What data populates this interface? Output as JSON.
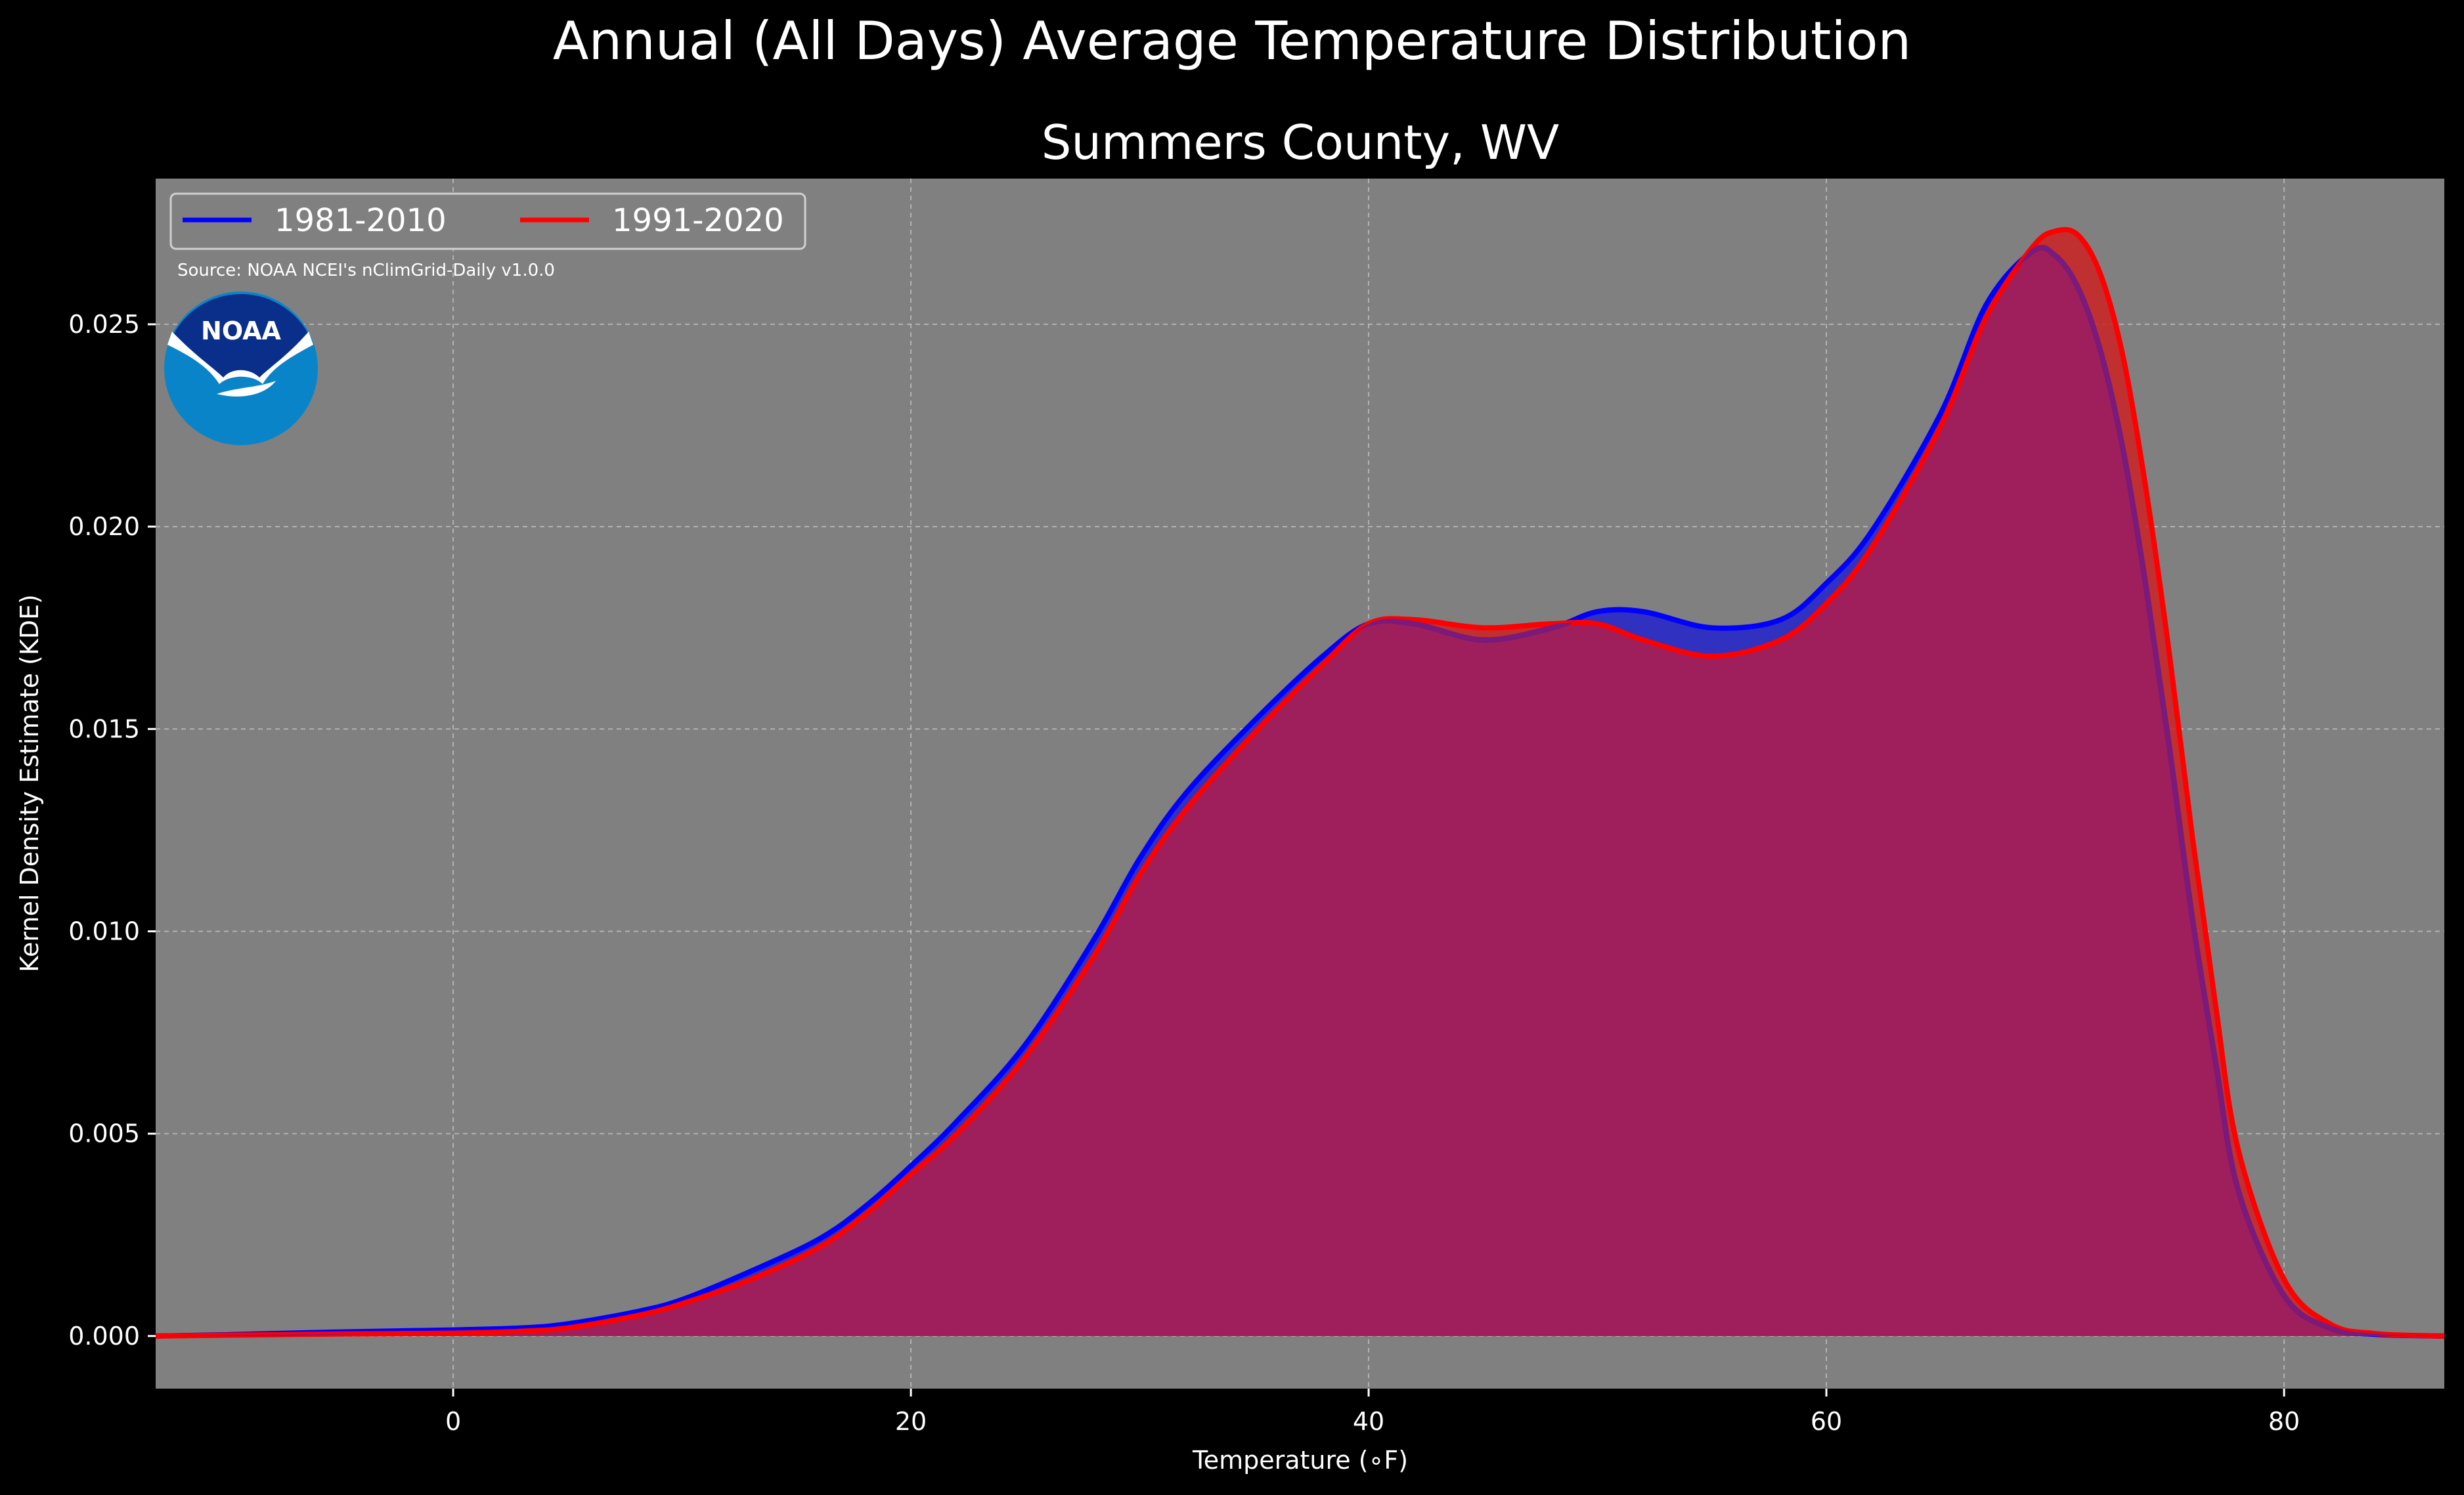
{
  "chart_data": {
    "type": "area",
    "suptitle": "Annual (All Days) Average Temperature Distribution",
    "title": "Summers County, WV",
    "xlabel": "Temperature (∘F)",
    "ylabel": "Kernel Density Estimate (KDE)",
    "xlim": [
      -13,
      87
    ],
    "ylim": [
      -0.0013,
      0.0286
    ],
    "xticks": [
      0,
      20,
      40,
      60,
      80
    ],
    "yticks": [
      0.0,
      0.005,
      0.01,
      0.015,
      0.02,
      0.025
    ],
    "ytick_labels": [
      "0.000",
      "0.005",
      "0.010",
      "0.015",
      "0.020",
      "0.025"
    ],
    "grid": true,
    "legend_position": "top-left",
    "source_note": "Source: NOAA NCEI's nClimGrid-Daily v1.0.0",
    "logo_text": "NOAA",
    "colors": {
      "background": "#000000",
      "plot_background": "#808080",
      "overlap_fill": "#9e1f5c"
    },
    "x": [
      -13,
      -10,
      -5,
      0,
      3,
      5,
      8,
      10,
      13,
      16,
      18,
      20,
      22,
      25,
      28,
      30,
      32,
      35,
      38,
      40,
      42,
      45,
      48,
      50,
      52,
      55,
      58,
      60,
      62,
      65,
      67,
      69,
      70,
      71,
      72,
      73,
      74,
      75,
      76,
      77,
      78,
      80,
      82,
      84,
      87
    ],
    "series": [
      {
        "name": "1981-2010",
        "color": "#0000ff",
        "fill": "#2222cc",
        "values": [
          0.0,
          3e-05,
          0.0001,
          0.00015,
          0.0002,
          0.0003,
          0.0006,
          0.0009,
          0.0016,
          0.0024,
          0.0032,
          0.0042,
          0.0053,
          0.0072,
          0.0098,
          0.0118,
          0.0134,
          0.0152,
          0.0168,
          0.0176,
          0.0176,
          0.0172,
          0.0175,
          0.0179,
          0.0179,
          0.0175,
          0.0177,
          0.0186,
          0.0199,
          0.0228,
          0.0255,
          0.0268,
          0.0267,
          0.0259,
          0.0243,
          0.0218,
          0.0184,
          0.0145,
          0.0103,
          0.0068,
          0.0036,
          0.001,
          0.0002,
          4e-05,
          0.0
        ]
      },
      {
        "name": "1991-2020",
        "color": "#ff0000",
        "fill": "#cc2222",
        "values": [
          0.0,
          2e-05,
          5e-05,
          7e-05,
          0.00012,
          0.0002,
          0.0005,
          0.0008,
          0.0014,
          0.0022,
          0.003,
          0.004,
          0.005,
          0.0069,
          0.0094,
          0.0114,
          0.013,
          0.0149,
          0.0166,
          0.0176,
          0.0177,
          0.0175,
          0.0176,
          0.0176,
          0.0172,
          0.0168,
          0.0172,
          0.0181,
          0.0195,
          0.0225,
          0.0252,
          0.0269,
          0.0273,
          0.0272,
          0.0262,
          0.0241,
          0.0208,
          0.0168,
          0.0123,
          0.0082,
          0.0046,
          0.0014,
          0.0003,
          6e-05,
          0.0
        ]
      }
    ]
  }
}
